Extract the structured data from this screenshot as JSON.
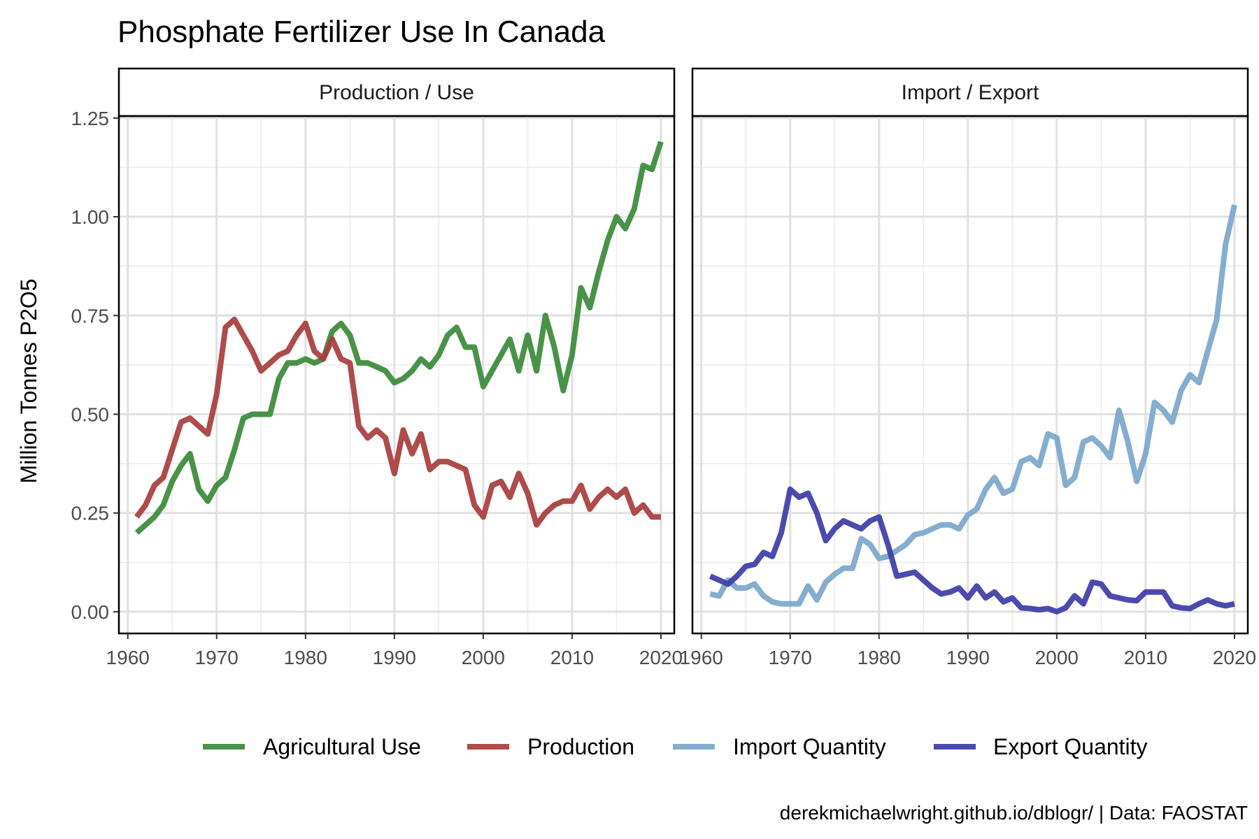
{
  "title": "Phosphate Fertilizer Use In Canada",
  "caption": "derekmichaelwright.github.io/dblogr/ | Data: FAOSTAT",
  "colors": {
    "agricultural_use": "#3a8a3a",
    "production": "#a83c3c",
    "import_quantity": "#7aa6cc",
    "export_quantity": "#3c3ca8"
  },
  "chart_data": {
    "type": "line",
    "ylabel": "Million Tonnes P2O5",
    "x_ticks": [
      1960,
      1970,
      1980,
      1990,
      2000,
      2010,
      2020
    ],
    "y_ticks": [
      0.0,
      0.25,
      0.5,
      0.75,
      1.0,
      1.25
    ],
    "y_tick_labels": [
      "0.00",
      "0.25",
      "0.50",
      "0.75",
      "1.00",
      "1.25"
    ],
    "xlim": [
      1959,
      2021.5
    ],
    "ylim": [
      -0.055,
      1.255
    ],
    "grid": true,
    "legend_position": "bottom",
    "legend": [
      {
        "key": "agricultural_use",
        "label": "Agricultural Use"
      },
      {
        "key": "production",
        "label": "Production"
      },
      {
        "key": "import_quantity",
        "label": "Import Quantity"
      },
      {
        "key": "export_quantity",
        "label": "Export Quantity"
      }
    ],
    "panels": [
      {
        "label": "Production / Use",
        "series": [
          {
            "key": "agricultural_use",
            "points": [
              [
                1961,
                0.2
              ],
              [
                1962,
                0.22
              ],
              [
                1963,
                0.24
              ],
              [
                1964,
                0.27
              ],
              [
                1965,
                0.33
              ],
              [
                1966,
                0.37
              ],
              [
                1967,
                0.4
              ],
              [
                1968,
                0.31
              ],
              [
                1969,
                0.28
              ],
              [
                1970,
                0.32
              ],
              [
                1971,
                0.34
              ],
              [
                1972,
                0.41
              ],
              [
                1973,
                0.49
              ],
              [
                1974,
                0.5
              ],
              [
                1975,
                0.5
              ],
              [
                1976,
                0.5
              ],
              [
                1977,
                0.59
              ],
              [
                1978,
                0.63
              ],
              [
                1979,
                0.63
              ],
              [
                1980,
                0.64
              ],
              [
                1981,
                0.63
              ],
              [
                1982,
                0.64
              ],
              [
                1983,
                0.71
              ],
              [
                1984,
                0.73
              ],
              [
                1985,
                0.7
              ],
              [
                1986,
                0.63
              ],
              [
                1987,
                0.63
              ],
              [
                1988,
                0.62
              ],
              [
                1989,
                0.61
              ],
              [
                1990,
                0.58
              ],
              [
                1991,
                0.59
              ],
              [
                1992,
                0.61
              ],
              [
                1993,
                0.64
              ],
              [
                1994,
                0.62
              ],
              [
                1995,
                0.65
              ],
              [
                1996,
                0.7
              ],
              [
                1997,
                0.72
              ],
              [
                1998,
                0.67
              ],
              [
                1999,
                0.67
              ],
              [
                2000,
                0.57
              ],
              [
                2001,
                0.61
              ],
              [
                2002,
                0.65
              ],
              [
                2003,
                0.69
              ],
              [
                2004,
                0.61
              ],
              [
                2005,
                0.7
              ],
              [
                2006,
                0.61
              ],
              [
                2007,
                0.75
              ],
              [
                2008,
                0.67
              ],
              [
                2009,
                0.56
              ],
              [
                2010,
                0.65
              ],
              [
                2011,
                0.82
              ],
              [
                2012,
                0.77
              ],
              [
                2013,
                0.86
              ],
              [
                2014,
                0.94
              ],
              [
                2015,
                1.0
              ],
              [
                2016,
                0.97
              ],
              [
                2017,
                1.02
              ],
              [
                2018,
                1.13
              ],
              [
                2019,
                1.12
              ],
              [
                2020,
                1.19
              ]
            ]
          },
          {
            "key": "production",
            "points": [
              [
                1961,
                0.24
              ],
              [
                1962,
                0.27
              ],
              [
                1963,
                0.32
              ],
              [
                1964,
                0.34
              ],
              [
                1965,
                0.41
              ],
              [
                1966,
                0.48
              ],
              [
                1967,
                0.49
              ],
              [
                1968,
                0.47
              ],
              [
                1969,
                0.45
              ],
              [
                1970,
                0.55
              ],
              [
                1971,
                0.72
              ],
              [
                1972,
                0.74
              ],
              [
                1973,
                0.7
              ],
              [
                1974,
                0.66
              ],
              [
                1975,
                0.61
              ],
              [
                1976,
                0.63
              ],
              [
                1977,
                0.65
              ],
              [
                1978,
                0.66
              ],
              [
                1979,
                0.7
              ],
              [
                1980,
                0.73
              ],
              [
                1981,
                0.66
              ],
              [
                1982,
                0.64
              ],
              [
                1983,
                0.69
              ],
              [
                1984,
                0.64
              ],
              [
                1985,
                0.63
              ],
              [
                1986,
                0.47
              ],
              [
                1987,
                0.44
              ],
              [
                1988,
                0.46
              ],
              [
                1989,
                0.44
              ],
              [
                1990,
                0.35
              ],
              [
                1991,
                0.46
              ],
              [
                1992,
                0.4
              ],
              [
                1993,
                0.45
              ],
              [
                1994,
                0.36
              ],
              [
                1995,
                0.38
              ],
              [
                1996,
                0.38
              ],
              [
                1997,
                0.37
              ],
              [
                1998,
                0.36
              ],
              [
                1999,
                0.27
              ],
              [
                2000,
                0.24
              ],
              [
                2001,
                0.32
              ],
              [
                2002,
                0.33
              ],
              [
                2003,
                0.29
              ],
              [
                2004,
                0.35
              ],
              [
                2005,
                0.3
              ],
              [
                2006,
                0.22
              ],
              [
                2007,
                0.25
              ],
              [
                2008,
                0.27
              ],
              [
                2009,
                0.28
              ],
              [
                2010,
                0.28
              ],
              [
                2011,
                0.32
              ],
              [
                2012,
                0.26
              ],
              [
                2013,
                0.29
              ],
              [
                2014,
                0.31
              ],
              [
                2015,
                0.29
              ],
              [
                2016,
                0.31
              ],
              [
                2017,
                0.25
              ],
              [
                2018,
                0.27
              ],
              [
                2019,
                0.24
              ],
              [
                2020,
                0.24
              ]
            ]
          }
        ]
      },
      {
        "label": "Import / Export",
        "series": [
          {
            "key": "import_quantity",
            "points": [
              [
                1961,
                0.045
              ],
              [
                1962,
                0.04
              ],
              [
                1963,
                0.08
              ],
              [
                1964,
                0.06
              ],
              [
                1965,
                0.06
              ],
              [
                1966,
                0.07
              ],
              [
                1967,
                0.04
              ],
              [
                1968,
                0.025
              ],
              [
                1969,
                0.02
              ],
              [
                1970,
                0.02
              ],
              [
                1971,
                0.02
              ],
              [
                1972,
                0.065
              ],
              [
                1973,
                0.03
              ],
              [
                1974,
                0.075
              ],
              [
                1975,
                0.095
              ],
              [
                1976,
                0.11
              ],
              [
                1977,
                0.11
              ],
              [
                1978,
                0.185
              ],
              [
                1979,
                0.17
              ],
              [
                1980,
                0.135
              ],
              [
                1981,
                0.14
              ],
              [
                1982,
                0.155
              ],
              [
                1983,
                0.17
              ],
              [
                1984,
                0.195
              ],
              [
                1985,
                0.2
              ],
              [
                1986,
                0.21
              ],
              [
                1987,
                0.22
              ],
              [
                1988,
                0.22
              ],
              [
                1989,
                0.21
              ],
              [
                1990,
                0.245
              ],
              [
                1991,
                0.26
              ],
              [
                1992,
                0.31
              ],
              [
                1993,
                0.34
              ],
              [
                1994,
                0.3
              ],
              [
                1995,
                0.31
              ],
              [
                1996,
                0.38
              ],
              [
                1997,
                0.39
              ],
              [
                1998,
                0.37
              ],
              [
                1999,
                0.45
              ],
              [
                2000,
                0.44
              ],
              [
                2001,
                0.32
              ],
              [
                2002,
                0.34
              ],
              [
                2003,
                0.43
              ],
              [
                2004,
                0.44
              ],
              [
                2005,
                0.42
              ],
              [
                2006,
                0.39
              ],
              [
                2007,
                0.51
              ],
              [
                2008,
                0.43
              ],
              [
                2009,
                0.33
              ],
              [
                2010,
                0.4
              ],
              [
                2011,
                0.53
              ],
              [
                2012,
                0.51
              ],
              [
                2013,
                0.48
              ],
              [
                2014,
                0.56
              ],
              [
                2015,
                0.6
              ],
              [
                2016,
                0.58
              ],
              [
                2017,
                0.66
              ],
              [
                2018,
                0.74
              ],
              [
                2019,
                0.93
              ],
              [
                2020,
                1.03
              ]
            ]
          },
          {
            "key": "export_quantity",
            "points": [
              [
                1961,
                0.09
              ],
              [
                1962,
                0.08
              ],
              [
                1963,
                0.07
              ],
              [
                1964,
                0.09
              ],
              [
                1965,
                0.115
              ],
              [
                1966,
                0.12
              ],
              [
                1967,
                0.15
              ],
              [
                1968,
                0.14
              ],
              [
                1969,
                0.2
              ],
              [
                1970,
                0.31
              ],
              [
                1971,
                0.29
              ],
              [
                1972,
                0.3
              ],
              [
                1973,
                0.25
              ],
              [
                1974,
                0.18
              ],
              [
                1975,
                0.21
              ],
              [
                1976,
                0.23
              ],
              [
                1977,
                0.22
              ],
              [
                1978,
                0.21
              ],
              [
                1979,
                0.23
              ],
              [
                1980,
                0.24
              ],
              [
                1981,
                0.17
              ],
              [
                1982,
                0.09
              ],
              [
                1983,
                0.095
              ],
              [
                1984,
                0.1
              ],
              [
                1985,
                0.08
              ],
              [
                1986,
                0.06
              ],
              [
                1987,
                0.045
              ],
              [
                1988,
                0.05
              ],
              [
                1989,
                0.06
              ],
              [
                1990,
                0.035
              ],
              [
                1991,
                0.065
              ],
              [
                1992,
                0.035
              ],
              [
                1993,
                0.05
              ],
              [
                1994,
                0.025
              ],
              [
                1995,
                0.035
              ],
              [
                1996,
                0.01
              ],
              [
                1997,
                0.008
              ],
              [
                1998,
                0.005
              ],
              [
                1999,
                0.008
              ],
              [
                2000,
                0.0
              ],
              [
                2001,
                0.01
              ],
              [
                2002,
                0.04
              ],
              [
                2003,
                0.02
              ],
              [
                2004,
                0.075
              ],
              [
                2005,
                0.07
              ],
              [
                2006,
                0.04
              ],
              [
                2007,
                0.035
              ],
              [
                2008,
                0.03
              ],
              [
                2009,
                0.028
              ],
              [
                2010,
                0.05
              ],
              [
                2011,
                0.05
              ],
              [
                2012,
                0.05
              ],
              [
                2013,
                0.015
              ],
              [
                2014,
                0.01
              ],
              [
                2015,
                0.008
              ],
              [
                2016,
                0.02
              ],
              [
                2017,
                0.03
              ],
              [
                2018,
                0.02
              ],
              [
                2019,
                0.015
              ],
              [
                2020,
                0.02
              ]
            ]
          }
        ]
      }
    ]
  }
}
